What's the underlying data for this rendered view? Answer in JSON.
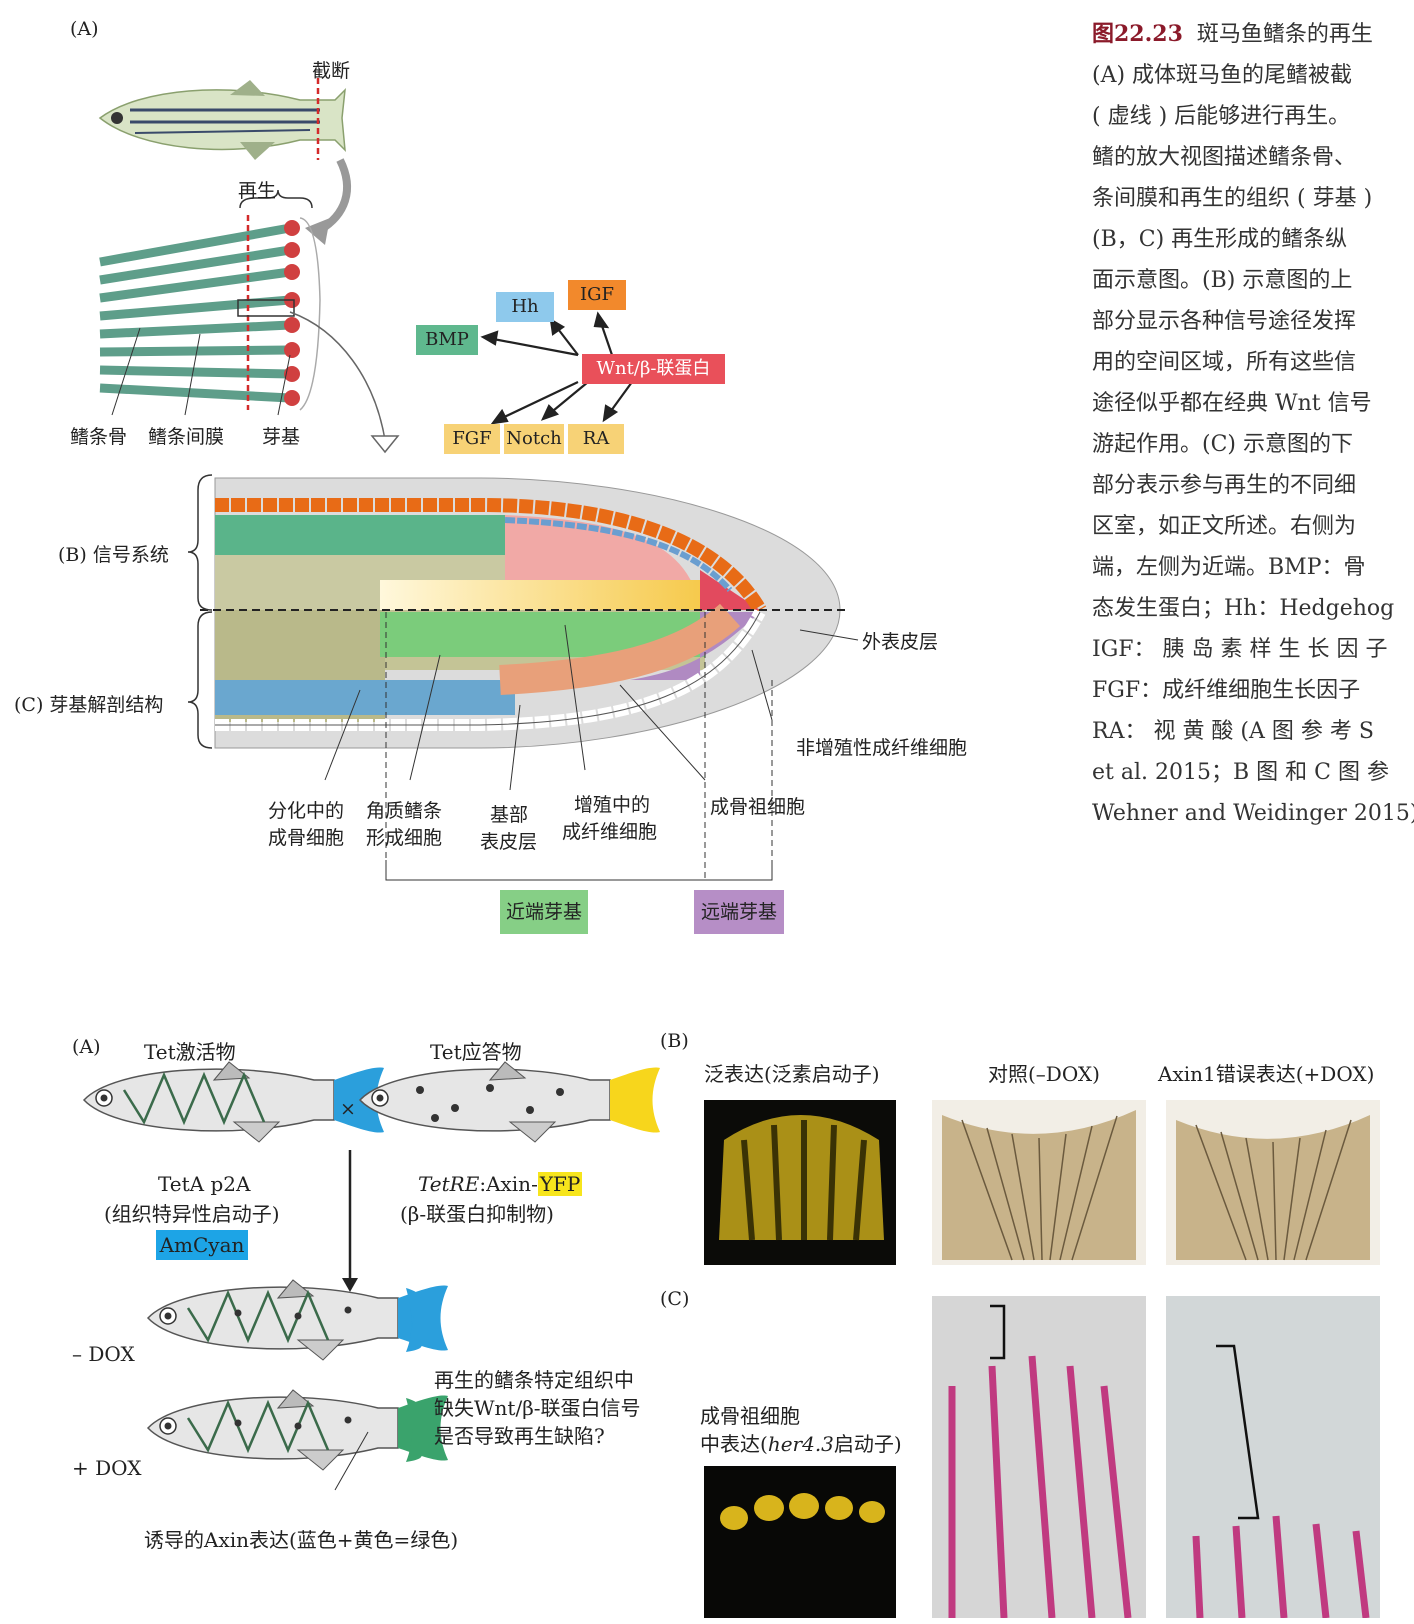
{
  "top": {
    "panel_a": "(A)",
    "cut": "截断",
    "regen": "再生",
    "fin_ray_bone": "鳍条骨",
    "fin_ray_membrane": "鳍条间膜",
    "blastema": "芽基",
    "signals": {
      "hh": "Hh",
      "igf": "IGF",
      "bmp": "BMP",
      "wnt": "Wnt/β-联蛋白",
      "fgf": "FGF",
      "notch": "Notch",
      "ra": "RA"
    },
    "panel_b": "(B) 信号系统",
    "panel_c": "(C) 芽基解剖结构",
    "outer_epidermis": "外表皮层",
    "nonprolif_fibro": "非增殖性成纤维细胞",
    "diff_osteo_1": "分化中的",
    "diff_osteo_2": "成骨细胞",
    "actino_1": "角质鳍条",
    "actino_2": "形成细胞",
    "basal_1": "基部",
    "basal_2": "表皮层",
    "prolif_1": "增殖中的",
    "prolif_2": "成纤维细胞",
    "osteo_prog": "成骨祖细胞",
    "proximal": "近端芽基",
    "distal": "远端芽基"
  },
  "caption": {
    "title": "图22.23",
    "lines": [
      "斑马鱼鳍条的再生",
      "(A) 成体斑马鱼的尾鳍被截",
      "( 虚线 ) 后能够进行再生。",
      "鳍的放大视图描述鳍条骨、",
      "条间膜和再生的组织 ( 芽基 )",
      "(B，C) 再生形成的鳍条纵",
      "面示意图。(B) 示意图的上",
      "部分显示各种信号途径发挥",
      "用的空间区域，所有这些信",
      "途径似乎都在经典 Wnt 信号",
      "游起作用。(C) 示意图的下",
      "部分表示参与再生的不同细",
      "区室，如正文所述。右侧为",
      "端，左侧为近端。BMP：骨",
      "态发生蛋白；Hh：Hedgehog",
      "IGF： 胰 岛 素 样 生 长 因 子",
      "FGF：成纤维细胞生长因子",
      "RA： 视 黄 酸 (A 图 参 考 S",
      "et al. 2015；B 图 和 C 图 参",
      "Wehner and Weidinger 2015)"
    ]
  },
  "bottom": {
    "panel_a": "(A)",
    "tet_activator": "Tet激活物",
    "tet_responder": "Tet应答物",
    "cross": "×",
    "teta": "TetA p2A",
    "tissue_promoter": "(组织特异性启动子)",
    "amcyan": "AmCyan",
    "tetre_italic": "TetRE",
    "tetre_mid": ":Axin-",
    "yfp": "YFP",
    "bcat_inhib": "(β-联蛋白抑制物)",
    "minus_dox": "– DOX",
    "plus_dox": "+ DOX",
    "question_1": "再生的鳍条特定组织中",
    "question_2": "缺失Wnt/β-联蛋白信号",
    "question_3": "是否导致再生缺陷?",
    "induced": "诱导的Axin表达(蓝色+黄色=绿色)",
    "panel_b": "(B)",
    "ubiq": "泛表达(泛素启动子)",
    "control": "对照(–DOX)",
    "axin1": "Axin1错误表达(+DOX)",
    "panel_c": "(C)",
    "osteo_1": "成骨祖细胞",
    "osteo_2a": "中表达(",
    "osteo_2b": "her4.3",
    "osteo_2c": "启动子)"
  }
}
